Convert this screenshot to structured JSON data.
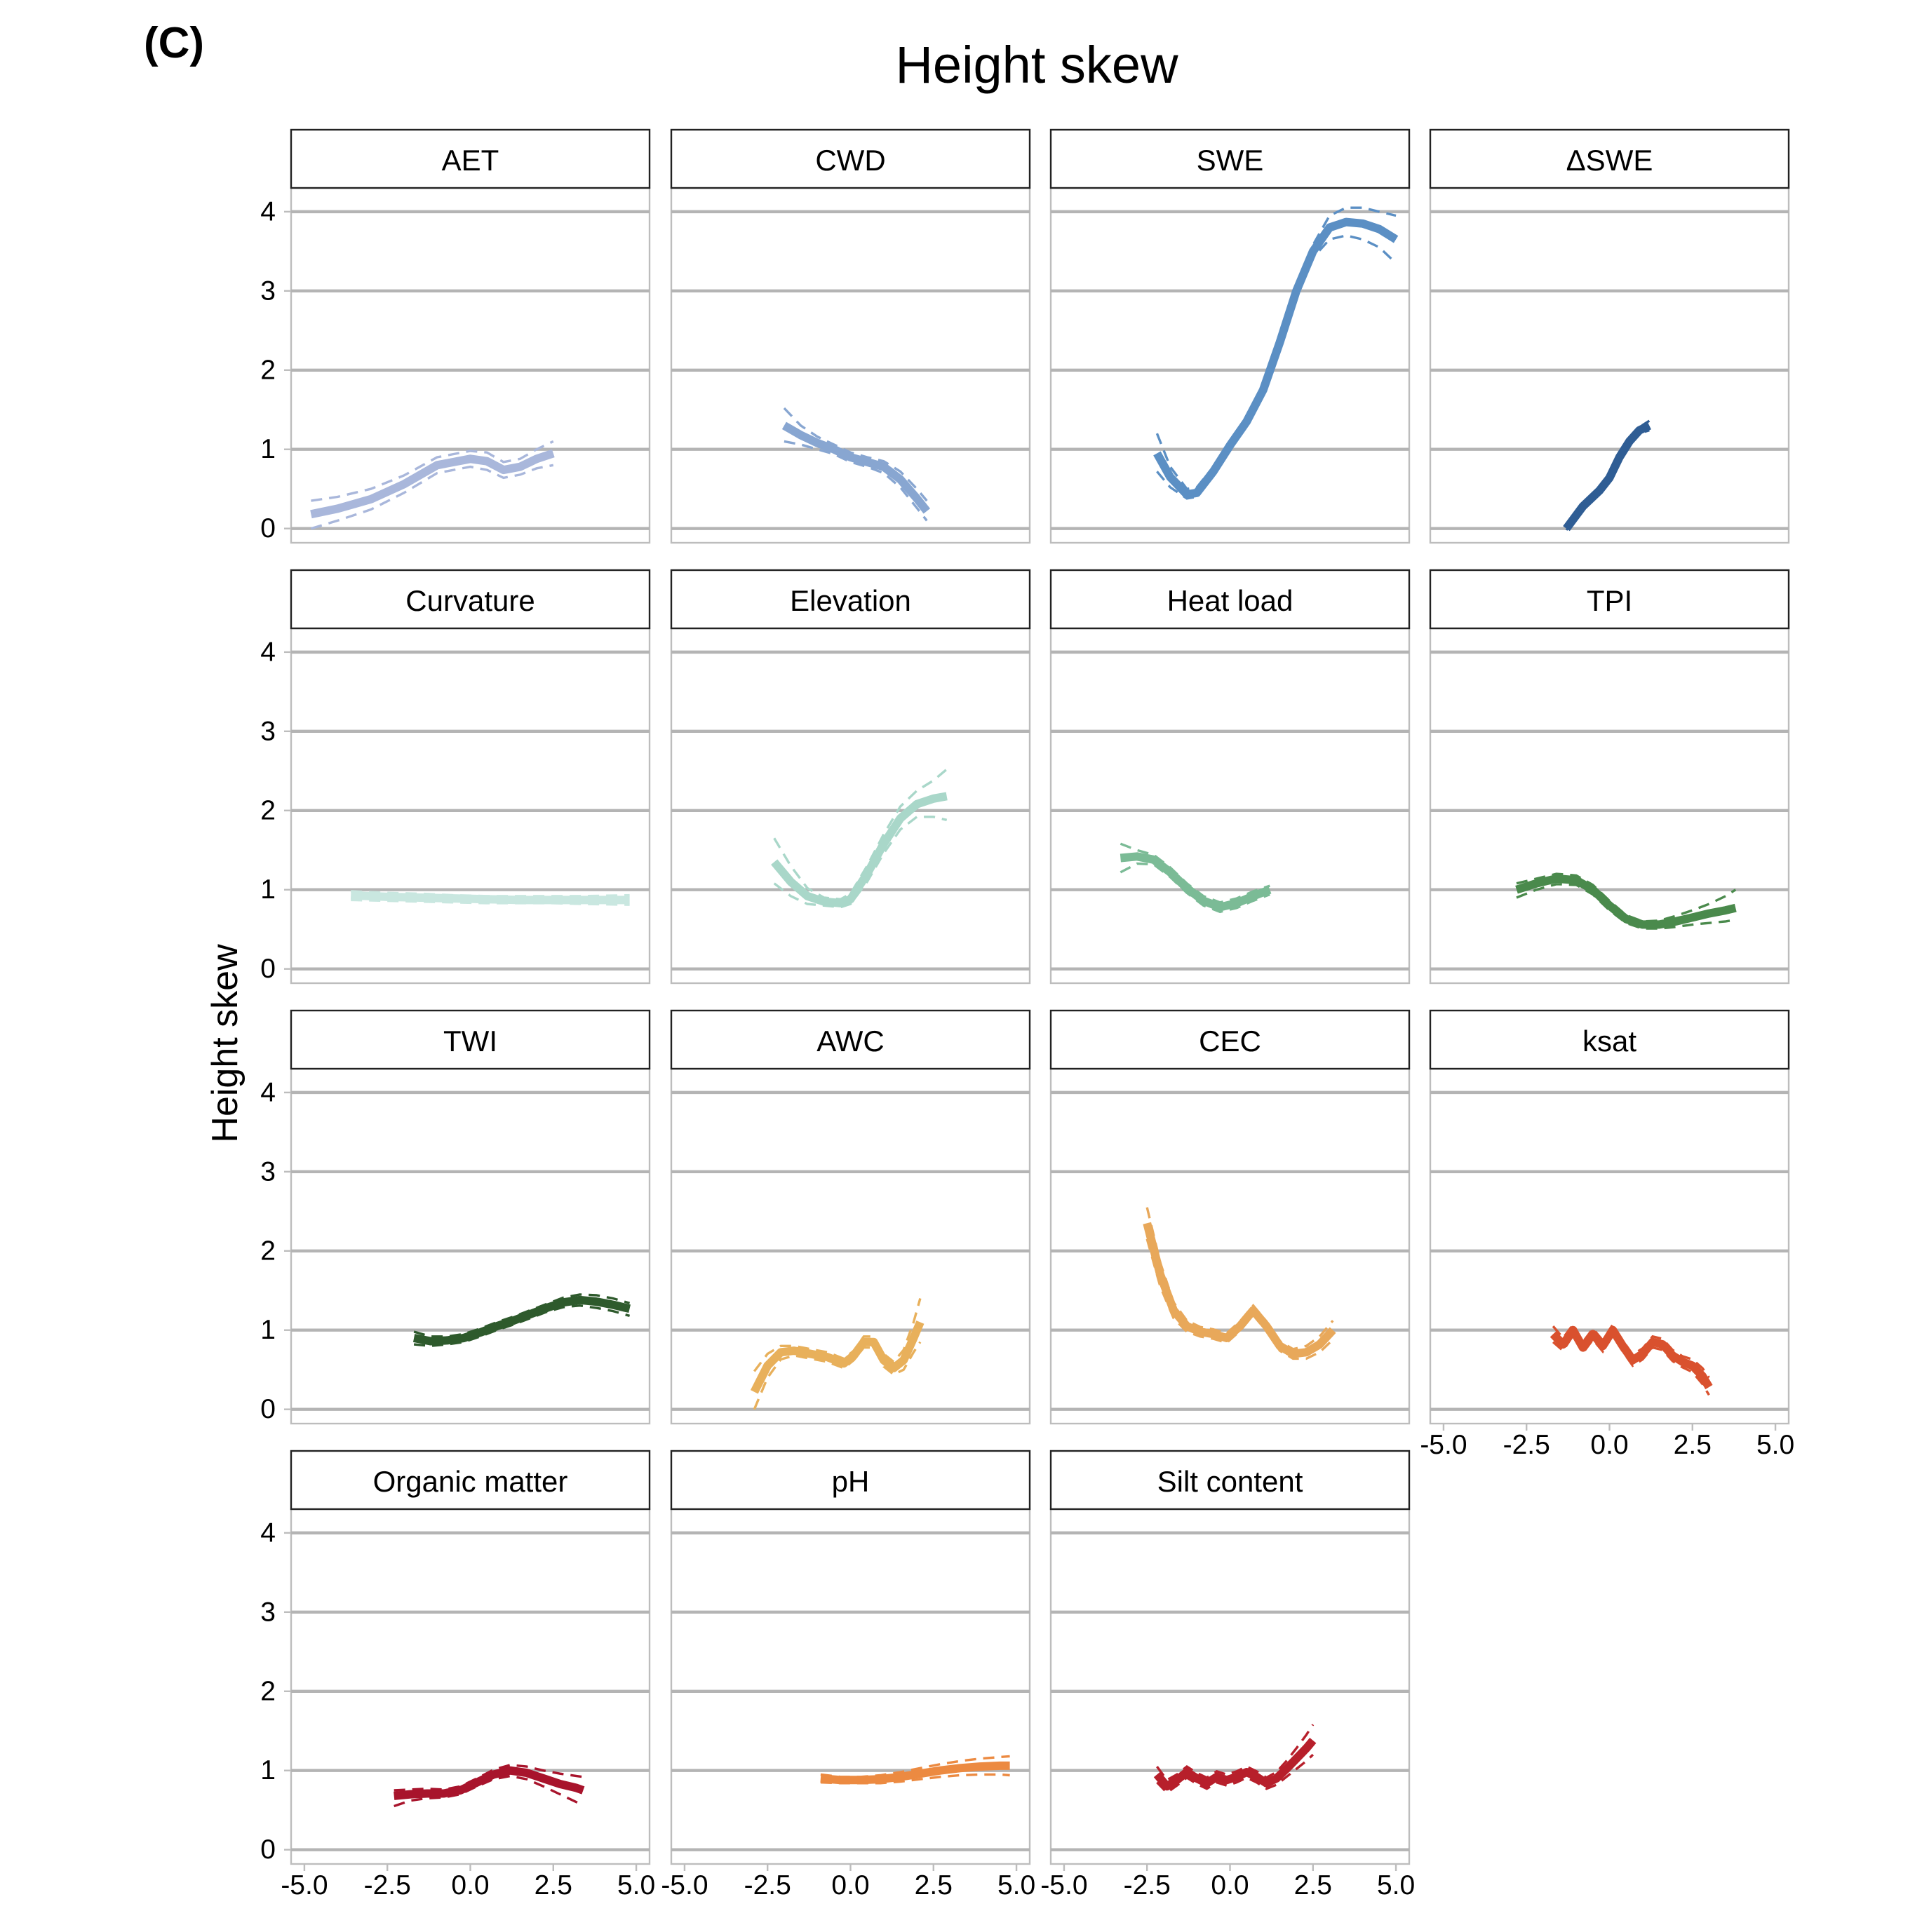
{
  "figure": {
    "panel_tag": "(C)",
    "title": "Height skew",
    "y_axis_label": "Height skew"
  },
  "chart_data": {
    "type": "line",
    "layout": "faceted 4x4 grid (15 panels), shared axes",
    "title": "Height skew",
    "xlabel": "",
    "ylabel": "Height skew",
    "xlim": [
      -5.4,
      5.4
    ],
    "ylim": [
      -0.18,
      4.3
    ],
    "x_ticks": [
      -5.0,
      -2.5,
      0.0,
      2.5,
      5.0
    ],
    "x_tick_labels": [
      "-5.0",
      "-2.5",
      "0.0",
      "2.5",
      "5.0"
    ],
    "y_ticks": [
      0,
      1,
      2,
      3,
      4
    ],
    "y_tick_labels": [
      "0",
      "1",
      "2",
      "3",
      "4"
    ],
    "grid": "horizontal major gridlines",
    "ci_style": "dashed lines above and below the fitted curve",
    "panels": [
      {
        "name": "AET",
        "color": "#a9b7db",
        "x": [
          -4.8,
          -4.0,
          -3.0,
          -2.0,
          -1.0,
          0.0,
          0.5,
          1.0,
          1.5,
          2.0,
          2.5
        ],
        "y": [
          0.18,
          0.25,
          0.37,
          0.56,
          0.8,
          0.88,
          0.85,
          0.74,
          0.78,
          0.88,
          0.95
        ],
        "upper": [
          0.35,
          0.4,
          0.5,
          0.67,
          0.9,
          0.98,
          0.96,
          0.84,
          0.88,
          1.0,
          1.1
        ],
        "lower": [
          0.0,
          0.1,
          0.24,
          0.45,
          0.7,
          0.78,
          0.74,
          0.64,
          0.68,
          0.76,
          0.8
        ]
      },
      {
        "name": "CWD",
        "color": "#88a6d1",
        "x": [
          -2.0,
          -1.5,
          -1.0,
          -0.5,
          0.0,
          0.5,
          1.0,
          1.5,
          2.0,
          2.3
        ],
        "y": [
          1.3,
          1.18,
          1.08,
          1.0,
          0.9,
          0.84,
          0.78,
          0.62,
          0.38,
          0.22
        ],
        "upper": [
          1.52,
          1.3,
          1.16,
          1.06,
          0.96,
          0.9,
          0.85,
          0.72,
          0.5,
          0.35
        ],
        "lower": [
          1.1,
          1.06,
          1.0,
          0.94,
          0.84,
          0.78,
          0.7,
          0.52,
          0.26,
          0.1
        ]
      },
      {
        "name": "SWE",
        "color": "#5b8fc4",
        "x": [
          -2.2,
          -1.8,
          -1.3,
          -1.0,
          -0.5,
          0.0,
          0.5,
          1.0,
          1.5,
          2.0,
          2.5,
          3.0,
          3.5,
          4.0,
          4.5,
          5.0
        ],
        "y": [
          0.95,
          0.65,
          0.43,
          0.45,
          0.72,
          1.05,
          1.35,
          1.75,
          2.35,
          3.0,
          3.5,
          3.8,
          3.87,
          3.85,
          3.78,
          3.65
        ],
        "upper": [
          1.2,
          0.78,
          0.5,
          0.52,
          0.78,
          1.1,
          1.4,
          1.8,
          2.4,
          3.05,
          3.58,
          3.95,
          4.05,
          4.05,
          4.0,
          3.95
        ],
        "lower": [
          0.72,
          0.52,
          0.38,
          0.4,
          0.66,
          1.0,
          1.3,
          1.7,
          2.3,
          2.95,
          3.42,
          3.65,
          3.7,
          3.65,
          3.55,
          3.35
        ]
      },
      {
        "name": "ΔSWE",
        "color": "#2f5d94",
        "x": [
          -1.3,
          -0.8,
          -0.3,
          0.0,
          0.3,
          0.6,
          0.9,
          1.2
        ],
        "y": [
          0.0,
          0.28,
          0.48,
          0.64,
          0.9,
          1.1,
          1.24,
          1.3
        ],
        "upper": [
          0.02,
          0.3,
          0.5,
          0.66,
          0.92,
          1.13,
          1.28,
          1.36
        ],
        "lower": [
          -0.02,
          0.26,
          0.46,
          0.62,
          0.88,
          1.07,
          1.2,
          1.24
        ]
      },
      {
        "name": "Curvature",
        "color": "#c9e7e0",
        "x": [
          -3.6,
          -2.5,
          -1.5,
          -0.5,
          0.5,
          1.5,
          2.5,
          3.5,
          4.8
        ],
        "y": [
          0.93,
          0.91,
          0.9,
          0.89,
          0.88,
          0.87,
          0.87,
          0.87,
          0.87
        ],
        "upper": [
          0.98,
          0.96,
          0.95,
          0.93,
          0.92,
          0.92,
          0.92,
          0.92,
          0.93
        ],
        "lower": [
          0.87,
          0.86,
          0.85,
          0.84,
          0.83,
          0.83,
          0.83,
          0.82,
          0.81
        ]
      },
      {
        "name": "Elevation",
        "color": "#a9d7c9",
        "x": [
          -2.3,
          -1.8,
          -1.3,
          -0.8,
          -0.3,
          0.0,
          0.5,
          1.0,
          1.5,
          2.0,
          2.5,
          2.9
        ],
        "y": [
          1.35,
          1.1,
          0.92,
          0.85,
          0.83,
          0.88,
          1.2,
          1.58,
          1.9,
          2.08,
          2.15,
          2.18
        ],
        "upper": [
          1.65,
          1.3,
          1.02,
          0.9,
          0.88,
          0.95,
          1.3,
          1.7,
          2.05,
          2.25,
          2.38,
          2.52
        ],
        "lower": [
          1.08,
          0.92,
          0.82,
          0.8,
          0.78,
          0.82,
          1.1,
          1.46,
          1.76,
          1.92,
          1.92,
          1.88
        ]
      },
      {
        "name": "Heat load",
        "color": "#7bbb96",
        "x": [
          -3.3,
          -2.8,
          -2.3,
          -1.8,
          -1.3,
          -0.8,
          -0.3,
          0.2,
          0.7,
          1.2
        ],
        "y": [
          1.4,
          1.42,
          1.38,
          1.22,
          1.02,
          0.86,
          0.78,
          0.83,
          0.92,
          1.0
        ],
        "upper": [
          1.58,
          1.5,
          1.44,
          1.28,
          1.08,
          0.92,
          0.84,
          0.89,
          0.98,
          1.05
        ],
        "lower": [
          1.22,
          1.33,
          1.32,
          1.16,
          0.96,
          0.8,
          0.72,
          0.77,
          0.86,
          0.94
        ]
      },
      {
        "name": "TPI",
        "color": "#4a8a4c",
        "x": [
          -2.8,
          -2.2,
          -1.6,
          -1.0,
          -0.5,
          0.0,
          0.5,
          1.0,
          1.5,
          2.0,
          2.5,
          3.0,
          3.5,
          3.8
        ],
        "y": [
          1.0,
          1.08,
          1.14,
          1.12,
          1.0,
          0.8,
          0.63,
          0.56,
          0.56,
          0.6,
          0.65,
          0.7,
          0.74,
          0.77
        ],
        "upper": [
          1.08,
          1.14,
          1.2,
          1.18,
          1.06,
          0.86,
          0.68,
          0.6,
          0.61,
          0.67,
          0.74,
          0.82,
          0.92,
          1.0
        ],
        "lower": [
          0.9,
          1.0,
          1.07,
          1.06,
          0.94,
          0.74,
          0.58,
          0.51,
          0.51,
          0.53,
          0.56,
          0.58,
          0.6,
          0.62
        ]
      },
      {
        "name": "TWI",
        "color": "#2e5a2c",
        "x": [
          -1.7,
          -1.2,
          -0.7,
          -0.2,
          0.3,
          0.8,
          1.3,
          1.8,
          2.3,
          2.8,
          3.3,
          3.8,
          4.3,
          4.8
        ],
        "y": [
          0.9,
          0.86,
          0.87,
          0.9,
          0.97,
          1.05,
          1.12,
          1.2,
          1.28,
          1.35,
          1.38,
          1.36,
          1.32,
          1.27
        ],
        "upper": [
          0.98,
          0.92,
          0.92,
          0.95,
          1.02,
          1.1,
          1.17,
          1.25,
          1.33,
          1.41,
          1.45,
          1.44,
          1.4,
          1.34
        ],
        "lower": [
          0.82,
          0.8,
          0.82,
          0.85,
          0.92,
          1.0,
          1.07,
          1.15,
          1.23,
          1.29,
          1.31,
          1.28,
          1.24,
          1.18
        ]
      },
      {
        "name": "AWC",
        "color": "#e8b05b",
        "x": [
          -2.9,
          -2.5,
          -2.1,
          -1.7,
          -1.2,
          -0.7,
          -0.2,
          0.1,
          0.4,
          0.7,
          1.0,
          1.3,
          1.6,
          1.9,
          2.1
        ],
        "y": [
          0.22,
          0.55,
          0.72,
          0.74,
          0.7,
          0.66,
          0.58,
          0.68,
          0.85,
          0.85,
          0.62,
          0.52,
          0.62,
          0.9,
          1.1
        ],
        "upper": [
          0.48,
          0.7,
          0.8,
          0.8,
          0.76,
          0.72,
          0.64,
          0.74,
          0.92,
          0.92,
          0.7,
          0.6,
          0.75,
          1.1,
          1.4
        ],
        "lower": [
          0.0,
          0.4,
          0.63,
          0.68,
          0.64,
          0.6,
          0.52,
          0.62,
          0.78,
          0.78,
          0.54,
          0.44,
          0.5,
          0.72,
          0.85
        ]
      },
      {
        "name": "CEC",
        "color": "#e8a85a",
        "x": [
          -2.5,
          -2.1,
          -1.7,
          -1.3,
          -0.9,
          -0.5,
          -0.1,
          0.3,
          0.7,
          1.1,
          1.5,
          1.9,
          2.3,
          2.7,
          3.1
        ],
        "y": [
          2.35,
          1.7,
          1.25,
          1.05,
          0.98,
          0.95,
          0.9,
          1.05,
          1.25,
          1.05,
          0.8,
          0.7,
          0.72,
          0.82,
          1.0
        ],
        "upper": [
          2.55,
          1.85,
          1.35,
          1.12,
          1.04,
          1.01,
          0.96,
          1.11,
          1.31,
          1.11,
          0.86,
          0.76,
          0.8,
          0.92,
          1.12
        ],
        "lower": [
          2.15,
          1.55,
          1.15,
          0.98,
          0.92,
          0.89,
          0.84,
          0.99,
          1.19,
          0.99,
          0.74,
          0.64,
          0.64,
          0.72,
          0.88
        ]
      },
      {
        "name": "ksat",
        "color": "#d9512e",
        "x": [
          -1.7,
          -1.4,
          -1.1,
          -0.8,
          -0.5,
          -0.2,
          0.1,
          0.4,
          0.7,
          1.0,
          1.3,
          1.6,
          1.9,
          2.2,
          2.5,
          2.8,
          3.0
        ],
        "y": [
          0.95,
          0.82,
          1.0,
          0.78,
          0.95,
          0.8,
          1.0,
          0.8,
          0.62,
          0.7,
          0.85,
          0.82,
          0.68,
          0.6,
          0.55,
          0.42,
          0.28
        ],
        "upper": [
          1.05,
          0.9,
          1.07,
          0.85,
          1.02,
          0.87,
          1.07,
          0.87,
          0.69,
          0.77,
          0.92,
          0.89,
          0.75,
          0.67,
          0.63,
          0.52,
          0.4
        ],
        "lower": [
          0.85,
          0.74,
          0.93,
          0.71,
          0.88,
          0.73,
          0.93,
          0.73,
          0.55,
          0.63,
          0.78,
          0.75,
          0.61,
          0.53,
          0.47,
          0.32,
          0.18
        ]
      },
      {
        "name": "Organic matter",
        "color": "#a8142c",
        "x": [
          -2.3,
          -1.8,
          -1.3,
          -0.8,
          -0.3,
          0.2,
          0.7,
          1.2,
          1.7,
          2.2,
          2.7,
          3.2,
          3.4
        ],
        "y": [
          0.68,
          0.7,
          0.71,
          0.71,
          0.75,
          0.85,
          0.95,
          1.0,
          0.97,
          0.9,
          0.83,
          0.78,
          0.75
        ],
        "upper": [
          0.75,
          0.76,
          0.77,
          0.76,
          0.8,
          0.9,
          1.01,
          1.07,
          1.05,
          1.0,
          0.96,
          0.93,
          0.92
        ],
        "lower": [
          0.55,
          0.62,
          0.65,
          0.66,
          0.7,
          0.8,
          0.89,
          0.93,
          0.89,
          0.8,
          0.7,
          0.6,
          0.55
        ]
      },
      {
        "name": "pH",
        "color": "#ec8a41",
        "x": [
          -0.9,
          -0.3,
          0.3,
          0.9,
          1.5,
          2.1,
          2.7,
          3.3,
          3.9,
          4.5,
          4.8
        ],
        "y": [
          0.9,
          0.88,
          0.88,
          0.89,
          0.92,
          0.96,
          1.0,
          1.03,
          1.05,
          1.06,
          1.06
        ],
        "upper": [
          0.95,
          0.92,
          0.92,
          0.94,
          0.98,
          1.03,
          1.08,
          1.12,
          1.15,
          1.17,
          1.18
        ],
        "lower": [
          0.85,
          0.84,
          0.84,
          0.84,
          0.86,
          0.89,
          0.92,
          0.94,
          0.95,
          0.95,
          0.94
        ]
      },
      {
        "name": "Silt content",
        "color": "#b71f2b",
        "x": [
          -2.2,
          -1.9,
          -1.6,
          -1.3,
          -1.0,
          -0.7,
          -0.4,
          -0.1,
          0.2,
          0.5,
          0.8,
          1.1,
          1.4,
          1.7,
          2.0,
          2.3,
          2.5
        ],
        "y": [
          0.95,
          0.8,
          0.88,
          0.98,
          0.9,
          0.84,
          0.92,
          0.88,
          0.92,
          0.98,
          0.92,
          0.84,
          0.9,
          1.02,
          1.15,
          1.28,
          1.38
        ],
        "upper": [
          1.05,
          0.88,
          0.95,
          1.05,
          0.97,
          0.91,
          0.99,
          0.95,
          0.99,
          1.05,
          0.99,
          0.91,
          0.98,
          1.12,
          1.28,
          1.45,
          1.58
        ],
        "lower": [
          0.85,
          0.72,
          0.81,
          0.91,
          0.83,
          0.77,
          0.85,
          0.81,
          0.85,
          0.91,
          0.85,
          0.77,
          0.82,
          0.92,
          1.02,
          1.12,
          1.2
        ]
      }
    ]
  }
}
